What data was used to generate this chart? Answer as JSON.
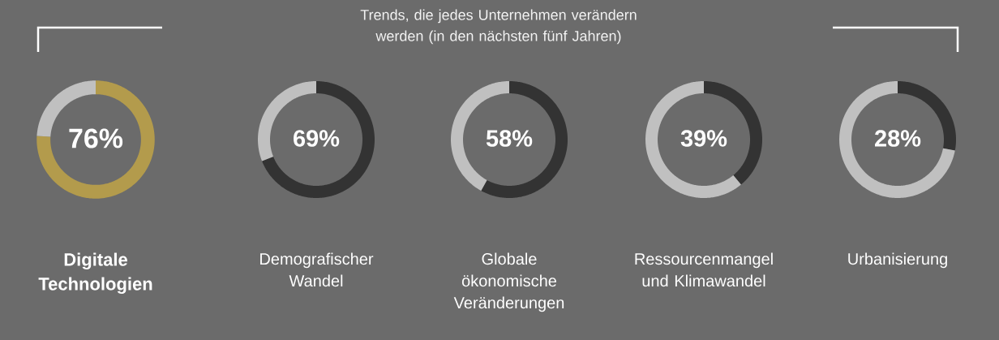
{
  "chart_data": [
    {
      "type": "donut",
      "xlabel": "Digitale Technologien",
      "categories": [
        null,
        null
      ],
      "values": [
        76,
        24
      ],
      "colors": [
        "#b39b4c",
        "#c0c0c0"
      ],
      "value_labels": [
        "76%",
        null
      ]
    },
    {
      "type": "donut",
      "xlabel": "Demografischer Wandel",
      "categories": [
        null,
        null
      ],
      "values": [
        69,
        31
      ],
      "colors": [
        "#333333",
        "#c0c0c0"
      ],
      "value_labels": [
        "69%",
        null
      ]
    },
    {
      "type": "donut",
      "title": "Trends, die jedes Unternehmen verändern werden (in den nächsten fünf Jahren)",
      "xlabel": "Globale ökonomische Veränderungen",
      "categories": [
        null,
        null
      ],
      "values": [
        58,
        42
      ],
      "colors": [
        "#333333",
        "#c0c0c0"
      ],
      "value_labels": [
        "58%",
        null
      ]
    },
    {
      "type": "donut",
      "xlabel": "Ressourcenmangel und Klimawandel",
      "categories": [
        null,
        null
      ],
      "values": [
        39,
        61
      ],
      "colors": [
        "#333333",
        "#c0c0c0"
      ],
      "value_labels": [
        "39%",
        null
      ]
    },
    {
      "type": "donut",
      "xlabel": "Urbanisierung",
      "categories": [
        null,
        null
      ],
      "values": [
        28,
        72
      ],
      "colors": [
        "#333333",
        "#c0c0c0"
      ],
      "value_labels": [
        "28%",
        null
      ]
    }
  ]
}
